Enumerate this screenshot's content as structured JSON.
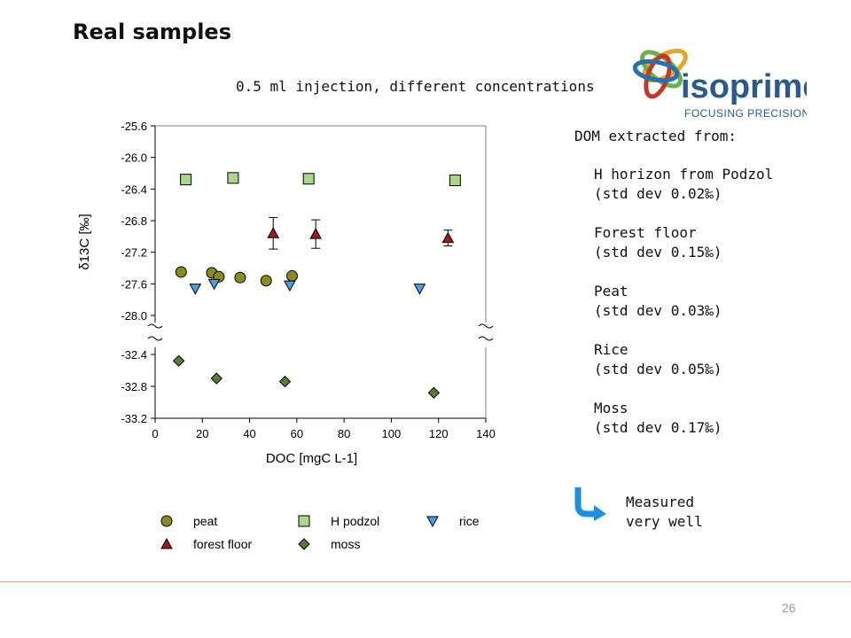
{
  "slide": {
    "title": "Real samples",
    "subtitle": "0.5 ml injection, different concentrations",
    "page_number": "26"
  },
  "logo": {
    "brand": "isoprime",
    "tagline": "FOCUSING PRECISION"
  },
  "info": {
    "heading": "DOM extracted from:",
    "sources": [
      {
        "name": "H horizon from Podzol",
        "std": "(std dev 0.02‰)"
      },
      {
        "name": "Forest floor",
        "std": "(std dev 0.15‰)"
      },
      {
        "name": "Peat",
        "std": "(std dev 0.03‰)"
      },
      {
        "name": "Rice",
        "std": "(std dev 0.05‰)"
      },
      {
        "name": "Moss",
        "std": "(std dev 0.17‰)"
      }
    ],
    "measured_line1": "Measured",
    "measured_line2": "very well"
  },
  "chart_data": {
    "type": "scatter",
    "title": "",
    "xlabel": "DOC [mgC L-1]",
    "ylabel": "δ13C [‰]",
    "xlim": [
      0,
      140
    ],
    "x_ticks": [
      0,
      20,
      40,
      60,
      80,
      100,
      120,
      140
    ],
    "y_upper_ticks": [
      -25.6,
      -26.0,
      -26.4,
      -26.8,
      -27.2,
      -27.6,
      -28.0
    ],
    "y_lower_ticks": [
      -32.4,
      -32.8,
      -33.2
    ],
    "axis_break": "between -28.0 and -32.4",
    "grid": false,
    "legend_position": "bottom",
    "series": [
      {
        "name": "peat",
        "marker": "circle",
        "color": "#8a8a1e",
        "points": [
          [
            11,
            -27.45
          ],
          [
            24,
            -27.46
          ],
          [
            27,
            -27.51
          ],
          [
            36,
            -27.52
          ],
          [
            47,
            -27.56
          ],
          [
            58,
            -27.5
          ]
        ]
      },
      {
        "name": "H podzol",
        "marker": "square",
        "color": "#a8d88a",
        "points": [
          [
            13,
            -26.28
          ],
          [
            33,
            -26.26
          ],
          [
            65,
            -26.27
          ],
          [
            127,
            -26.29
          ]
        ]
      },
      {
        "name": "rice",
        "marker": "triangle-down",
        "color": "#4a9ee8",
        "points": [
          [
            17,
            -27.66
          ],
          [
            25,
            -27.6
          ],
          [
            57,
            -27.62
          ],
          [
            112,
            -27.66
          ]
        ]
      },
      {
        "name": "forest floor",
        "marker": "triangle-up",
        "color": "#a01818",
        "points": [
          [
            50,
            -26.96
          ],
          [
            68,
            -26.97
          ],
          [
            124,
            -27.02
          ]
        ],
        "error": [
          0.2,
          0.18,
          0.1
        ]
      },
      {
        "name": "moss",
        "marker": "diamond",
        "color": "#5a7a3a",
        "points": [
          [
            10,
            -32.48
          ],
          [
            26,
            -32.7
          ],
          [
            55,
            -32.74
          ],
          [
            118,
            -32.88
          ]
        ]
      }
    ],
    "legend_entries": [
      "peat",
      "H podzol",
      "rice",
      "forest floor",
      "moss"
    ]
  }
}
